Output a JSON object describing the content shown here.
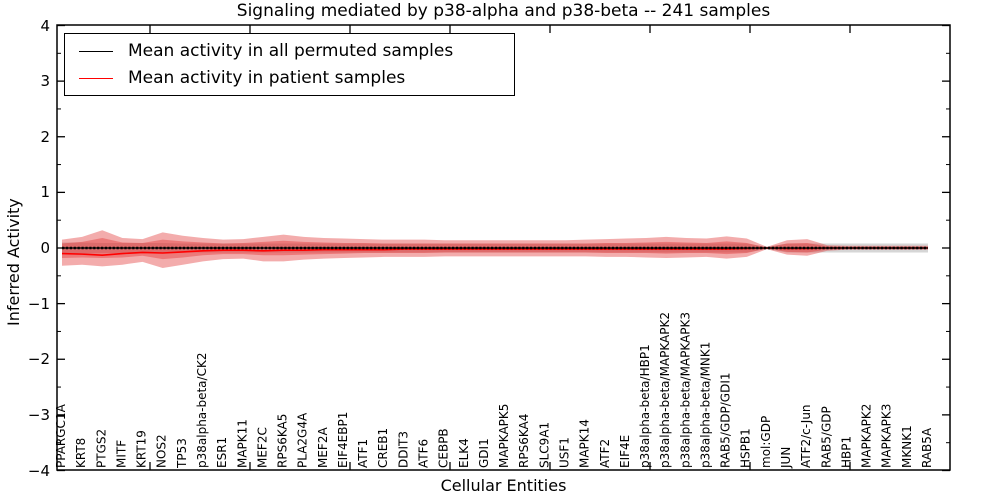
{
  "chart_data": {
    "type": "line",
    "title": "Signaling mediated by p38-alpha and p38-beta -- 241 samples",
    "xlabel": "Cellular Entities",
    "ylabel": "Inferred Activity",
    "ylim": [
      -4,
      4
    ],
    "y_major_ticks": [
      4,
      3,
      2,
      1,
      0,
      -1,
      -2,
      -3,
      -4
    ],
    "y_minor_tick_step": 0.5,
    "grid": false,
    "legend_position": "upper left",
    "samples_note": "241 samples",
    "categories": [
      "PPARGC1A",
      "KRT8",
      "PTGS2",
      "MITF",
      "KRT19",
      "NOS2",
      "TP53",
      "p38alpha-beta/CK2",
      "ESR1",
      "MAPK11",
      "MEF2C",
      "RPS6KA5",
      "PLA2G4A",
      "MEF2A",
      "EIF4EBP1",
      "ATF1",
      "CREB1",
      "DDIT3",
      "ATF6",
      "CEBPB",
      "ELK4",
      "GDI1",
      "MAPKAPK5",
      "RPS6KA4",
      "SLC9A1",
      "USF1",
      "MAPK14",
      "ATF2",
      "EIF4E",
      "p38alpha-beta/HBP1",
      "p38alpha-beta/MAPKAPK2",
      "p38alpha-beta/MAPKAPK3",
      "p38alpha-beta/MNK1",
      "RAB5/GDP/GDI1",
      "HSPB1",
      "mol:GDP",
      "JUN",
      "ATF2/c-Jun",
      "RAB5/GDP",
      "HBP1",
      "MAPKAPK2",
      "MAPKAPK3",
      "MKNK1",
      "RAB5A"
    ],
    "series": [
      {
        "name": "Mean activity in all permuted samples",
        "color": "#000000",
        "style": "solid-with-dense-dashes",
        "values": [
          0,
          0,
          0,
          0,
          0,
          0,
          0,
          0,
          0,
          0,
          0,
          0,
          0,
          0,
          0,
          0,
          0,
          0,
          0,
          0,
          0,
          0,
          0,
          0,
          0,
          0,
          0,
          0,
          0,
          0,
          0,
          0,
          0,
          0,
          0,
          0,
          0,
          0,
          0,
          0,
          0,
          0,
          0,
          0
        ]
      },
      {
        "name": "Mean activity in patient samples",
        "color": "#ff0000",
        "style": "solid",
        "values": [
          -0.1,
          -0.11,
          -0.13,
          -0.1,
          -0.08,
          -0.09,
          -0.07,
          -0.05,
          -0.04,
          -0.04,
          -0.05,
          -0.04,
          -0.04,
          -0.03,
          -0.03,
          -0.03,
          -0.03,
          -0.02,
          -0.02,
          -0.02,
          -0.02,
          -0.02,
          -0.02,
          -0.02,
          -0.02,
          -0.02,
          -0.02,
          -0.02,
          -0.02,
          -0.02,
          -0.02,
          -0.02,
          -0.02,
          -0.02,
          -0.01,
          0.0,
          -0.01,
          -0.01,
          0.0,
          0.0,
          0.0,
          0.0,
          0.0,
          0.0
        ]
      }
    ],
    "bands": [
      {
        "name": "permuted-samples-spread",
        "color": "#999999",
        "opacity": 0.4,
        "upper": [
          0.1,
          0.1,
          0.09,
          0.09,
          0.09,
          0.09,
          0.08,
          0.08,
          0.08,
          0.08,
          0.08,
          0.08,
          0.08,
          0.08,
          0.08,
          0.08,
          0.08,
          0.08,
          0.08,
          0.08,
          0.08,
          0.08,
          0.08,
          0.08,
          0.08,
          0.08,
          0.08,
          0.08,
          0.08,
          0.08,
          0.08,
          0.08,
          0.08,
          0.08,
          0.08,
          0.02,
          0.08,
          0.08,
          0.08,
          0.08,
          0.08,
          0.08,
          0.08,
          0.08
        ],
        "lower": [
          -0.1,
          -0.1,
          -0.09,
          -0.09,
          -0.09,
          -0.09,
          -0.08,
          -0.08,
          -0.08,
          -0.08,
          -0.08,
          -0.08,
          -0.08,
          -0.08,
          -0.08,
          -0.08,
          -0.08,
          -0.08,
          -0.08,
          -0.08,
          -0.08,
          -0.08,
          -0.08,
          -0.08,
          -0.08,
          -0.08,
          -0.08,
          -0.08,
          -0.08,
          -0.08,
          -0.08,
          -0.08,
          -0.08,
          -0.08,
          -0.08,
          -0.02,
          -0.08,
          -0.08,
          -0.08,
          -0.08,
          -0.08,
          -0.08,
          -0.08,
          -0.08
        ]
      },
      {
        "name": "patient-samples-spread-outer",
        "color": "#e03030",
        "opacity": 0.4,
        "upper": [
          0.15,
          0.2,
          0.32,
          0.18,
          0.16,
          0.28,
          0.22,
          0.18,
          0.15,
          0.16,
          0.2,
          0.24,
          0.2,
          0.18,
          0.17,
          0.16,
          0.15,
          0.15,
          0.15,
          0.14,
          0.14,
          0.14,
          0.14,
          0.14,
          0.14,
          0.14,
          0.15,
          0.16,
          0.17,
          0.18,
          0.2,
          0.18,
          0.17,
          0.21,
          0.17,
          0.02,
          0.14,
          0.16,
          0.05,
          0.04,
          0.04,
          0.04,
          0.04,
          0.04
        ],
        "lower": [
          -0.32,
          -0.3,
          -0.33,
          -0.3,
          -0.25,
          -0.36,
          -0.3,
          -0.24,
          -0.2,
          -0.19,
          -0.24,
          -0.24,
          -0.21,
          -0.19,
          -0.18,
          -0.17,
          -0.16,
          -0.16,
          -0.16,
          -0.15,
          -0.15,
          -0.15,
          -0.15,
          -0.15,
          -0.15,
          -0.15,
          -0.15,
          -0.16,
          -0.16,
          -0.17,
          -0.18,
          -0.17,
          -0.16,
          -0.19,
          -0.16,
          -0.02,
          -0.12,
          -0.14,
          -0.05,
          -0.03,
          -0.03,
          -0.03,
          -0.03,
          -0.03
        ]
      },
      {
        "name": "patient-samples-spread-inner",
        "color": "#e03030",
        "opacity": 0.4,
        "upper": [
          0.08,
          0.11,
          0.18,
          0.1,
          0.09,
          0.15,
          0.12,
          0.1,
          0.08,
          0.09,
          0.11,
          0.13,
          0.11,
          0.1,
          0.09,
          0.09,
          0.08,
          0.08,
          0.08,
          0.08,
          0.08,
          0.08,
          0.08,
          0.08,
          0.08,
          0.08,
          0.08,
          0.09,
          0.09,
          0.1,
          0.11,
          0.1,
          0.09,
          0.12,
          0.09,
          0.01,
          0.08,
          0.09,
          0.03,
          0.02,
          0.02,
          0.02,
          0.02,
          0.02
        ],
        "lower": [
          -0.18,
          -0.17,
          -0.18,
          -0.17,
          -0.14,
          -0.2,
          -0.17,
          -0.13,
          -0.11,
          -0.11,
          -0.13,
          -0.13,
          -0.12,
          -0.11,
          -0.1,
          -0.09,
          -0.09,
          -0.09,
          -0.09,
          -0.08,
          -0.08,
          -0.08,
          -0.08,
          -0.08,
          -0.08,
          -0.08,
          -0.08,
          -0.09,
          -0.09,
          -0.09,
          -0.1,
          -0.09,
          -0.09,
          -0.11,
          -0.09,
          -0.01,
          -0.07,
          -0.08,
          -0.03,
          -0.02,
          -0.02,
          -0.02,
          -0.02,
          -0.02
        ]
      }
    ]
  }
}
